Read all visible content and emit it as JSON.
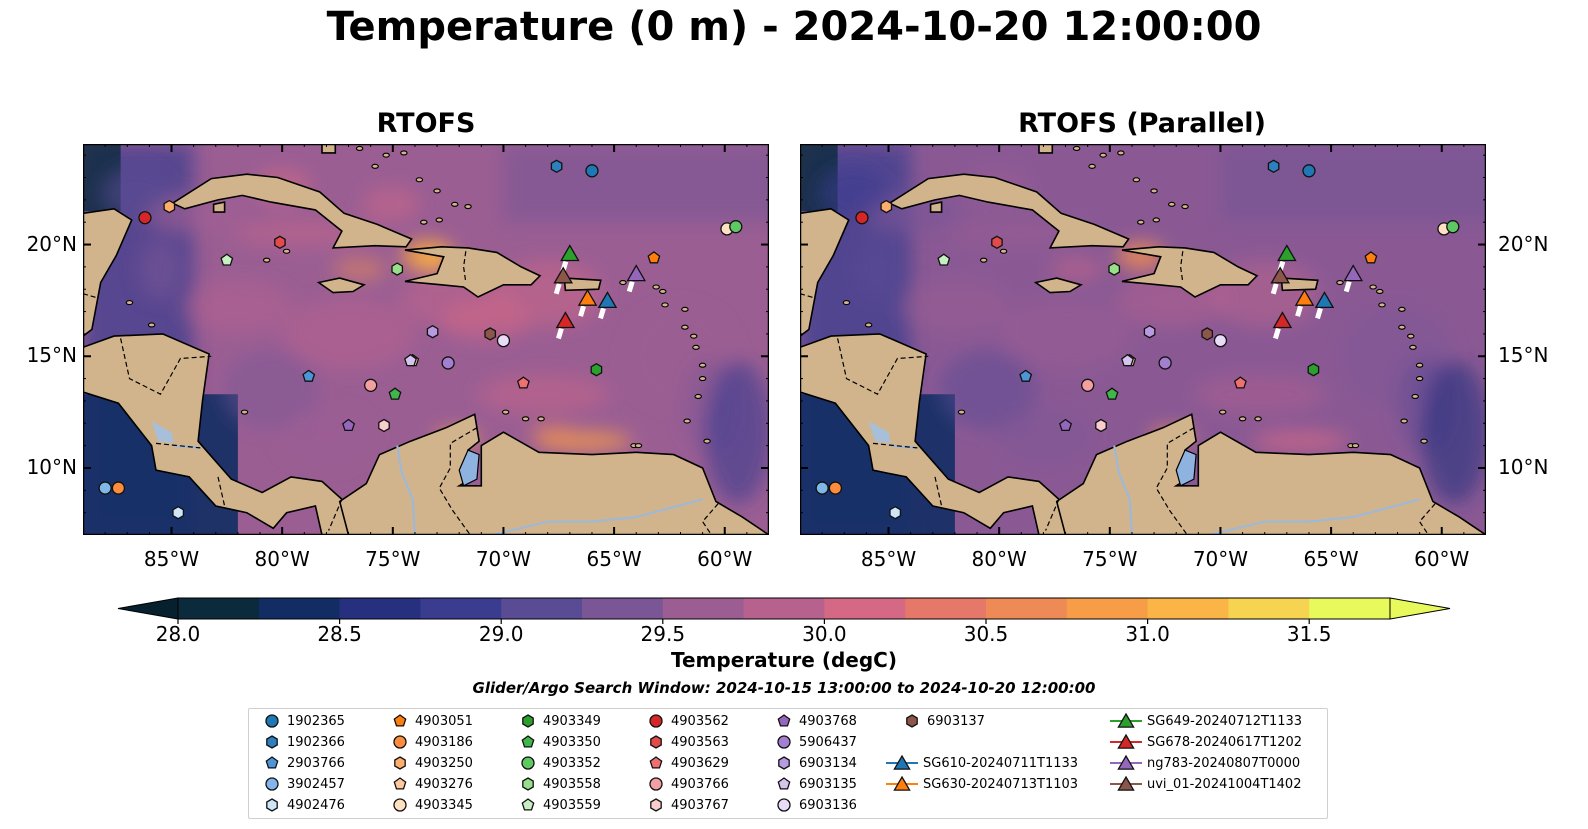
{
  "main_title": "Temperature (0 m) - 2024-10-20 12:00:00",
  "panels": [
    {
      "title": "RTOFS"
    },
    {
      "title": "RTOFS (Parallel)"
    }
  ],
  "colorbar": {
    "label": "Temperature (degC)",
    "ticks": [
      "28.0",
      "28.5",
      "29.0",
      "29.5",
      "30.0",
      "30.5",
      "31.0",
      "31.5"
    ],
    "colors": [
      "#0b2a3c",
      "#122d64",
      "#27307f",
      "#3a3c8f",
      "#5a4c94",
      "#7b5696",
      "#9c5d93",
      "#b7618e",
      "#d46885",
      "#e57868",
      "#ee8a55",
      "#f79c47",
      "#fbb446",
      "#f6d351",
      "#e8fa5b"
    ],
    "under_color": "#06202e",
    "over_color": "#e8fa5b"
  },
  "search_window": "Glider/Argo Search Window: 2024-10-15 13:00:00 to 2024-10-20 12:00:00",
  "chart_data": [
    {
      "type": "heatmap",
      "title": "RTOFS",
      "variable": "Sea surface temperature at 0 m",
      "units": "degC",
      "color_range": [
        28.0,
        31.5
      ],
      "x_ticks": [
        "85°W",
        "80°W",
        "75°W",
        "70°W",
        "65°W",
        "60°W"
      ],
      "y_ticks": [
        "20°N",
        "15°N",
        "10°N"
      ],
      "xlim": [
        -89,
        -58
      ],
      "ylim": [
        7,
        24.5
      ]
    },
    {
      "type": "heatmap",
      "title": "RTOFS (Parallel)",
      "variable": "Sea surface temperature at 0 m",
      "units": "degC",
      "color_range": [
        28.0,
        31.5
      ],
      "x_ticks": [
        "85°W",
        "80°W",
        "75°W",
        "70°W",
        "65°W",
        "60°W"
      ],
      "y_ticks": [
        "20°N",
        "15°N",
        "10°N"
      ],
      "xlim": [
        -89,
        -58
      ],
      "ylim": [
        7,
        24.5
      ]
    }
  ],
  "observations": [
    {
      "name": "1902365",
      "kind": "argo",
      "marker": "circle",
      "color": "#1f77b4",
      "lon": -66.0,
      "lat": 23.3
    },
    {
      "name": "1902366",
      "kind": "argo",
      "marker": "hexagon",
      "color": "#2e7fbf",
      "lon": -67.6,
      "lat": 23.5
    },
    {
      "name": "2903766",
      "kind": "argo",
      "marker": "pentagon",
      "color": "#4d95d6",
      "lon": -78.8,
      "lat": 14.1
    },
    {
      "name": "3902457",
      "kind": "argo",
      "marker": "circle",
      "color": "#7fb8e8",
      "lon": -88.0,
      "lat": 9.1
    },
    {
      "name": "4902476",
      "kind": "argo",
      "marker": "hexagon",
      "color": "#cfe6f7",
      "lon": -84.7,
      "lat": 8.0
    },
    {
      "name": "4903051",
      "kind": "argo",
      "marker": "pentagon",
      "color": "#ff7f0e",
      "lon": -63.2,
      "lat": 19.4
    },
    {
      "name": "4903186",
      "kind": "argo",
      "marker": "circle",
      "color": "#fd8d3c",
      "lon": -87.4,
      "lat": 9.1
    },
    {
      "name": "4903250",
      "kind": "argo",
      "marker": "hexagon",
      "color": "#fdae6b",
      "lon": -85.1,
      "lat": 21.7
    },
    {
      "name": "4903276",
      "kind": "argo",
      "marker": "pentagon",
      "color": "#fdc89a",
      "lon": -74.1,
      "lat": 14.8
    },
    {
      "name": "4903345",
      "kind": "argo",
      "marker": "circle",
      "color": "#fee0c2",
      "lon": -59.9,
      "lat": 20.7
    },
    {
      "name": "4903349",
      "kind": "argo",
      "marker": "hexagon",
      "color": "#2ca02c",
      "lon": -65.8,
      "lat": 14.4
    },
    {
      "name": "4903350",
      "kind": "argo",
      "marker": "pentagon",
      "color": "#41b64b",
      "lon": -74.9,
      "lat": 13.3
    },
    {
      "name": "4903352",
      "kind": "argo",
      "marker": "circle",
      "color": "#5ec962",
      "lon": -59.5,
      "lat": 20.8
    },
    {
      "name": "4903558",
      "kind": "argo",
      "marker": "hexagon",
      "color": "#98df8a",
      "lon": -74.8,
      "lat": 18.9
    },
    {
      "name": "4903559",
      "kind": "argo",
      "marker": "pentagon",
      "color": "#c7f0c2",
      "lon": -82.5,
      "lat": 19.3
    },
    {
      "name": "4903562",
      "kind": "argo",
      "marker": "circle",
      "color": "#d62728",
      "lon": -86.2,
      "lat": 21.2
    },
    {
      "name": "4903563",
      "kind": "argo",
      "marker": "hexagon",
      "color": "#e34a4b",
      "lon": -80.1,
      "lat": 20.1
    },
    {
      "name": "4903629",
      "kind": "argo",
      "marker": "pentagon",
      "color": "#ef7070",
      "lon": -69.1,
      "lat": 13.8
    },
    {
      "name": "4903766",
      "kind": "argo",
      "marker": "circle",
      "color": "#f4a0a0",
      "lon": -76.0,
      "lat": 13.7
    },
    {
      "name": "4903767",
      "kind": "argo",
      "marker": "hexagon",
      "color": "#f9cdcd",
      "lon": -75.4,
      "lat": 11.9
    },
    {
      "name": "4903768",
      "kind": "argo",
      "marker": "pentagon",
      "color": "#9467bd",
      "lon": -77.0,
      "lat": 11.9
    },
    {
      "name": "5906437",
      "kind": "argo",
      "marker": "circle",
      "color": "#a47fd0",
      "lon": -72.5,
      "lat": 14.7
    },
    {
      "name": "6903134",
      "kind": "argo",
      "marker": "hexagon",
      "color": "#b89ae0",
      "lon": -73.2,
      "lat": 16.1
    },
    {
      "name": "6903135",
      "kind": "argo",
      "marker": "pentagon",
      "color": "#d6c4f0",
      "lon": -74.2,
      "lat": 14.8
    },
    {
      "name": "6903136",
      "kind": "argo",
      "marker": "circle",
      "color": "#e8dcf7",
      "lon": -70.0,
      "lat": 15.7
    },
    {
      "name": "6903137",
      "kind": "argo",
      "marker": "hexagon",
      "color": "#8c564b",
      "lon": -70.6,
      "lat": 16.0
    },
    {
      "name": "SG610-20240711T1133",
      "kind": "glider",
      "marker": "triangle",
      "color": "#1f77b4",
      "lon": -65.3,
      "lat": 17.5
    },
    {
      "name": "SG630-20240713T1103",
      "kind": "glider",
      "marker": "triangle",
      "color": "#ff7f0e",
      "lon": -66.2,
      "lat": 17.6
    },
    {
      "name": "SG649-20240712T1133",
      "kind": "glider",
      "marker": "triangle",
      "color": "#2ca02c",
      "lon": -67.0,
      "lat": 19.6
    },
    {
      "name": "SG678-20240617T1202",
      "kind": "glider",
      "marker": "triangle",
      "color": "#d62728",
      "lon": -67.2,
      "lat": 16.6
    },
    {
      "name": "ng783-20240807T0000",
      "kind": "glider",
      "marker": "triangle",
      "color": "#9467bd",
      "lon": -64.0,
      "lat": 18.7
    },
    {
      "name": "uvi_01-20241004T1402",
      "kind": "glider",
      "marker": "triangle",
      "color": "#8c564b",
      "lon": -67.3,
      "lat": 18.6
    }
  ]
}
